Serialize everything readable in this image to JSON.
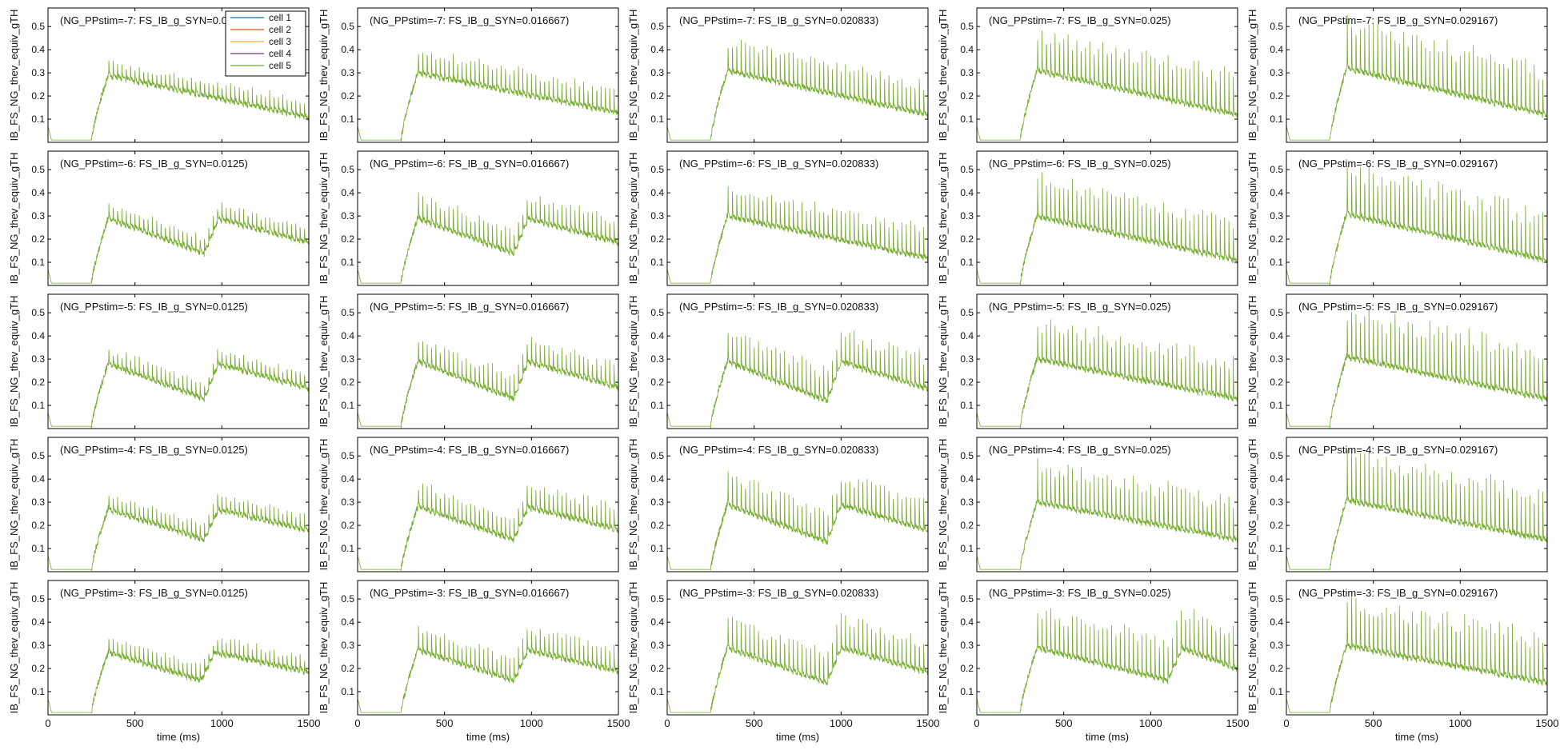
{
  "figure": {
    "colors": {
      "cell1": "#0072BD",
      "cell2": "#D95319",
      "cell3": "#EDB120",
      "cell4": "#7E2F8E",
      "cell5": "#77AC30",
      "axis": "#000000",
      "background": "#ffffff"
    },
    "legend": {
      "placement": "top-right of first panel",
      "entries": [
        "cell 1",
        "cell 2",
        "cell 3",
        "cell 4",
        "cell 5"
      ]
    }
  },
  "chart_data": [
    {
      "type": "line",
      "title": "(NG_PPstim=-7: FS_IB_g_SYN=0.0125)",
      "xlabel": "",
      "ylabel": "IB_FS_NG_thev_equiv_gTH",
      "xlim": [
        0,
        1500
      ],
      "ylim": [
        0,
        0.58
      ],
      "xticks": [
        "0",
        "500",
        "1000",
        "1500"
      ],
      "yticks": [
        "0.1",
        "0.2",
        "0.3",
        "0.4",
        "0.5"
      ],
      "grid": false,
      "show_xticks": false,
      "show_legend": true,
      "series": [
        {
          "name": "cell 5",
          "baseline": 0.01,
          "onset_ms": 250,
          "peak": 0.3,
          "trough_end": 0.12,
          "spike_amp": 0.06,
          "second_wave_ms": null
        }
      ]
    },
    {
      "type": "line",
      "title": "(NG_PPstim=-7: FS_IB_g_SYN=0.016667)",
      "xlabel": "",
      "ylabel": "IB_FS_NG_thev_equiv_gTH",
      "xlim": [
        0,
        1500
      ],
      "ylim": [
        0,
        0.58
      ],
      "xticks": [
        "0",
        "500",
        "1000",
        "1500"
      ],
      "yticks": [
        "0.1",
        "0.2",
        "0.3",
        "0.4",
        "0.5"
      ],
      "grid": false,
      "show_xticks": false,
      "show_legend": false,
      "series": [
        {
          "name": "cell 5",
          "baseline": 0.01,
          "onset_ms": 250,
          "peak": 0.31,
          "trough_end": 0.14,
          "spike_amp": 0.1,
          "second_wave_ms": null
        }
      ]
    },
    {
      "type": "line",
      "title": "(NG_PPstim=-7: FS_IB_g_SYN=0.020833)",
      "xlabel": "",
      "ylabel": "IB_FS_NG_thev_equiv_gTH",
      "xlim": [
        0,
        1500
      ],
      "ylim": [
        0,
        0.58
      ],
      "xticks": [
        "0",
        "500",
        "1000",
        "1500"
      ],
      "yticks": [
        "0.1",
        "0.2",
        "0.3",
        "0.4",
        "0.5"
      ],
      "grid": false,
      "show_xticks": false,
      "show_legend": false,
      "series": [
        {
          "name": "cell 5",
          "baseline": 0.01,
          "onset_ms": 250,
          "peak": 0.32,
          "trough_end": 0.13,
          "spike_amp": 0.14,
          "second_wave_ms": null
        }
      ]
    },
    {
      "type": "line",
      "title": "(NG_PPstim=-7: FS_IB_g_SYN=0.025)",
      "xlabel": "",
      "ylabel": "IB_FS_NG_thev_equiv_gTH",
      "xlim": [
        0,
        1500
      ],
      "ylim": [
        0,
        0.58
      ],
      "xticks": [
        "0",
        "500",
        "1000",
        "1500"
      ],
      "yticks": [
        "0.1",
        "0.2",
        "0.3",
        "0.4",
        "0.5"
      ],
      "grid": false,
      "show_xticks": false,
      "show_legend": false,
      "series": [
        {
          "name": "cell 5",
          "baseline": 0.01,
          "onset_ms": 250,
          "peak": 0.32,
          "trough_end": 0.13,
          "spike_amp": 0.18,
          "second_wave_ms": null
        }
      ]
    },
    {
      "type": "line",
      "title": "(NG_PPstim=-7: FS_IB_g_SYN=0.029167)",
      "xlabel": "",
      "ylabel": "IB_FS_NG_thev_equiv_gTH",
      "xlim": [
        0,
        1500
      ],
      "ylim": [
        0,
        0.58
      ],
      "xticks": [
        "0",
        "500",
        "1000",
        "1500"
      ],
      "yticks": [
        "0.1",
        "0.2",
        "0.3",
        "0.4",
        "0.5"
      ],
      "grid": false,
      "show_xticks": false,
      "show_legend": false,
      "series": [
        {
          "name": "cell 5",
          "baseline": 0.01,
          "onset_ms": 250,
          "peak": 0.33,
          "trough_end": 0.13,
          "spike_amp": 0.22,
          "second_wave_ms": null
        }
      ]
    },
    {
      "type": "line",
      "title": "(NG_PPstim=-6: FS_IB_g_SYN=0.0125)",
      "xlabel": "",
      "ylabel": "IB_FS_NG_thev_equiv_gTH",
      "xlim": [
        0,
        1500
      ],
      "ylim": [
        0,
        0.58
      ],
      "xticks": [
        "0",
        "500",
        "1000",
        "1500"
      ],
      "yticks": [
        "0.1",
        "0.2",
        "0.3",
        "0.4",
        "0.5"
      ],
      "grid": false,
      "show_xticks": false,
      "show_legend": false,
      "series": [
        {
          "name": "cell 5",
          "baseline": 0.01,
          "onset_ms": 250,
          "peak": 0.3,
          "trough_end": 0.15,
          "spike_amp": 0.06,
          "second_wave_ms": 900
        }
      ]
    },
    {
      "type": "line",
      "title": "(NG_PPstim=-6: FS_IB_g_SYN=0.016667)",
      "xlabel": "",
      "ylabel": "IB_FS_NG_thev_equiv_gTH",
      "xlim": [
        0,
        1500
      ],
      "ylim": [
        0,
        0.58
      ],
      "xticks": [
        "0",
        "500",
        "1000",
        "1500"
      ],
      "yticks": [
        "0.1",
        "0.2",
        "0.3",
        "0.4",
        "0.5"
      ],
      "grid": false,
      "show_xticks": false,
      "show_legend": false,
      "series": [
        {
          "name": "cell 5",
          "baseline": 0.01,
          "onset_ms": 250,
          "peak": 0.3,
          "trough_end": 0.15,
          "spike_amp": 0.1,
          "second_wave_ms": 900
        }
      ]
    },
    {
      "type": "line",
      "title": "(NG_PPstim=-6: FS_IB_g_SYN=0.020833)",
      "xlabel": "",
      "ylabel": "IB_FS_NG_thev_equiv_gTH",
      "xlim": [
        0,
        1500
      ],
      "ylim": [
        0,
        0.58
      ],
      "xticks": [
        "0",
        "500",
        "1000",
        "1500"
      ],
      "yticks": [
        "0.1",
        "0.2",
        "0.3",
        "0.4",
        "0.5"
      ],
      "grid": false,
      "show_xticks": false,
      "show_legend": false,
      "series": [
        {
          "name": "cell 5",
          "baseline": 0.01,
          "onset_ms": 250,
          "peak": 0.31,
          "trough_end": 0.13,
          "spike_amp": 0.13,
          "second_wave_ms": null
        }
      ]
    },
    {
      "type": "line",
      "title": "(NG_PPstim=-6: FS_IB_g_SYN=0.025)",
      "xlabel": "",
      "ylabel": "IB_FS_NG_thev_equiv_gTH",
      "xlim": [
        0,
        1500
      ],
      "ylim": [
        0,
        0.58
      ],
      "xticks": [
        "0",
        "500",
        "1000",
        "1500"
      ],
      "yticks": [
        "0.1",
        "0.2",
        "0.3",
        "0.4",
        "0.5"
      ],
      "grid": false,
      "show_xticks": false,
      "show_legend": false,
      "series": [
        {
          "name": "cell 5",
          "baseline": 0.01,
          "onset_ms": 250,
          "peak": 0.31,
          "trough_end": 0.12,
          "spike_amp": 0.18,
          "second_wave_ms": null
        }
      ]
    },
    {
      "type": "line",
      "title": "(NG_PPstim=-6: FS_IB_g_SYN=0.029167)",
      "xlabel": "",
      "ylabel": "IB_FS_NG_thev_equiv_gTH",
      "xlim": [
        0,
        1500
      ],
      "ylim": [
        0,
        0.58
      ],
      "xticks": [
        "0",
        "500",
        "1000",
        "1500"
      ],
      "yticks": [
        "0.1",
        "0.2",
        "0.3",
        "0.4",
        "0.5"
      ],
      "grid": false,
      "show_xticks": false,
      "show_legend": false,
      "series": [
        {
          "name": "cell 5",
          "baseline": 0.01,
          "onset_ms": 250,
          "peak": 0.32,
          "trough_end": 0.12,
          "spike_amp": 0.22,
          "second_wave_ms": null
        }
      ]
    },
    {
      "type": "line",
      "title": "(NG_PPstim=-5: FS_IB_g_SYN=0.0125)",
      "xlabel": "",
      "ylabel": "IB_FS_NG_thev_equiv_gTH",
      "xlim": [
        0,
        1500
      ],
      "ylim": [
        0,
        0.58
      ],
      "xticks": [
        "0",
        "500",
        "1000",
        "1500"
      ],
      "yticks": [
        "0.1",
        "0.2",
        "0.3",
        "0.4",
        "0.5"
      ],
      "grid": false,
      "show_xticks": false,
      "show_legend": false,
      "series": [
        {
          "name": "cell 5",
          "baseline": 0.01,
          "onset_ms": 250,
          "peak": 0.29,
          "trough_end": 0.14,
          "spike_amp": 0.06,
          "second_wave_ms": 900
        }
      ]
    },
    {
      "type": "line",
      "title": "(NG_PPstim=-5: FS_IB_g_SYN=0.016667)",
      "xlabel": "",
      "ylabel": "IB_FS_NG_thev_equiv_gTH",
      "xlim": [
        0,
        1500
      ],
      "ylim": [
        0,
        0.58
      ],
      "xticks": [
        "0",
        "500",
        "1000",
        "1500"
      ],
      "yticks": [
        "0.1",
        "0.2",
        "0.3",
        "0.4",
        "0.5"
      ],
      "grid": false,
      "show_xticks": false,
      "show_legend": false,
      "series": [
        {
          "name": "cell 5",
          "baseline": 0.01,
          "onset_ms": 250,
          "peak": 0.3,
          "trough_end": 0.14,
          "spike_amp": 0.1,
          "second_wave_ms": 900
        }
      ]
    },
    {
      "type": "line",
      "title": "(NG_PPstim=-5: FS_IB_g_SYN=0.020833)",
      "xlabel": "",
      "ylabel": "IB_FS_NG_thev_equiv_gTH",
      "xlim": [
        0,
        1500
      ],
      "ylim": [
        0,
        0.58
      ],
      "xticks": [
        "0",
        "500",
        "1000",
        "1500"
      ],
      "yticks": [
        "0.1",
        "0.2",
        "0.3",
        "0.4",
        "0.5"
      ],
      "grid": false,
      "show_xticks": false,
      "show_legend": false,
      "series": [
        {
          "name": "cell 5",
          "baseline": 0.01,
          "onset_ms": 250,
          "peak": 0.3,
          "trough_end": 0.13,
          "spike_amp": 0.14,
          "second_wave_ms": 920
        }
      ]
    },
    {
      "type": "line",
      "title": "(NG_PPstim=-5: FS_IB_g_SYN=0.025)",
      "xlabel": "",
      "ylabel": "IB_FS_NG_thev_equiv_gTH",
      "xlim": [
        0,
        1500
      ],
      "ylim": [
        0,
        0.58
      ],
      "xticks": [
        "0",
        "500",
        "1000",
        "1500"
      ],
      "yticks": [
        "0.1",
        "0.2",
        "0.3",
        "0.4",
        "0.5"
      ],
      "grid": false,
      "show_xticks": false,
      "show_legend": false,
      "series": [
        {
          "name": "cell 5",
          "baseline": 0.01,
          "onset_ms": 250,
          "peak": 0.31,
          "trough_end": 0.14,
          "spike_amp": 0.18,
          "second_wave_ms": null
        }
      ]
    },
    {
      "type": "line",
      "title": "(NG_PPstim=-5: FS_IB_g_SYN=0.029167)",
      "xlabel": "",
      "ylabel": "IB_FS_NG_thev_equiv_gTH",
      "xlim": [
        0,
        1500
      ],
      "ylim": [
        0,
        0.58
      ],
      "xticks": [
        "0",
        "500",
        "1000",
        "1500"
      ],
      "yticks": [
        "0.1",
        "0.2",
        "0.3",
        "0.4",
        "0.5"
      ],
      "grid": false,
      "show_xticks": false,
      "show_legend": false,
      "series": [
        {
          "name": "cell 5",
          "baseline": 0.01,
          "onset_ms": 250,
          "peak": 0.32,
          "trough_end": 0.14,
          "spike_amp": 0.22,
          "second_wave_ms": null
        }
      ]
    },
    {
      "type": "line",
      "title": "(NG_PPstim=-4: FS_IB_g_SYN=0.0125)",
      "xlabel": "",
      "ylabel": "IB_FS_NG_thev_equiv_gTH",
      "xlim": [
        0,
        1500
      ],
      "ylim": [
        0,
        0.58
      ],
      "xticks": [
        "0",
        "500",
        "1000",
        "1500"
      ],
      "yticks": [
        "0.1",
        "0.2",
        "0.3",
        "0.4",
        "0.5"
      ],
      "grid": false,
      "show_xticks": false,
      "show_legend": false,
      "series": [
        {
          "name": "cell 5",
          "baseline": 0.01,
          "onset_ms": 250,
          "peak": 0.28,
          "trough_end": 0.15,
          "spike_amp": 0.06,
          "second_wave_ms": 900
        }
      ]
    },
    {
      "type": "line",
      "title": "(NG_PPstim=-4: FS_IB_g_SYN=0.016667)",
      "xlabel": "",
      "ylabel": "IB_FS_NG_thev_equiv_gTH",
      "xlim": [
        0,
        1500
      ],
      "ylim": [
        0,
        0.58
      ],
      "xticks": [
        "0",
        "500",
        "1000",
        "1500"
      ],
      "yticks": [
        "0.1",
        "0.2",
        "0.3",
        "0.4",
        "0.5"
      ],
      "grid": false,
      "show_xticks": false,
      "show_legend": false,
      "series": [
        {
          "name": "cell 5",
          "baseline": 0.01,
          "onset_ms": 250,
          "peak": 0.29,
          "trough_end": 0.15,
          "spike_amp": 0.1,
          "second_wave_ms": 900
        }
      ]
    },
    {
      "type": "line",
      "title": "(NG_PPstim=-4: FS_IB_g_SYN=0.020833)",
      "xlabel": "",
      "ylabel": "IB_FS_NG_thev_equiv_gTH",
      "xlim": [
        0,
        1500
      ],
      "ylim": [
        0,
        0.58
      ],
      "xticks": [
        "0",
        "500",
        "1000",
        "1500"
      ],
      "yticks": [
        "0.1",
        "0.2",
        "0.3",
        "0.4",
        "0.5"
      ],
      "grid": false,
      "show_xticks": false,
      "show_legend": false,
      "series": [
        {
          "name": "cell 5",
          "baseline": 0.01,
          "onset_ms": 250,
          "peak": 0.3,
          "trough_end": 0.14,
          "spike_amp": 0.14,
          "second_wave_ms": 920
        }
      ]
    },
    {
      "type": "line",
      "title": "(NG_PPstim=-4: FS_IB_g_SYN=0.025)",
      "xlabel": "",
      "ylabel": "IB_FS_NG_thev_equiv_gTH",
      "xlim": [
        0,
        1500
      ],
      "ylim": [
        0,
        0.58
      ],
      "xticks": [
        "0",
        "500",
        "1000",
        "1500"
      ],
      "yticks": [
        "0.1",
        "0.2",
        "0.3",
        "0.4",
        "0.5"
      ],
      "grid": false,
      "show_xticks": false,
      "show_legend": false,
      "series": [
        {
          "name": "cell 5",
          "baseline": 0.01,
          "onset_ms": 250,
          "peak": 0.31,
          "trough_end": 0.15,
          "spike_amp": 0.18,
          "second_wave_ms": null
        }
      ]
    },
    {
      "type": "line",
      "title": "(NG_PPstim=-4: FS_IB_g_SYN=0.029167)",
      "xlabel": "",
      "ylabel": "IB_FS_NG_thev_equiv_gTH",
      "xlim": [
        0,
        1500
      ],
      "ylim": [
        0,
        0.58
      ],
      "xticks": [
        "0",
        "500",
        "1000",
        "1500"
      ],
      "yticks": [
        "0.1",
        "0.2",
        "0.3",
        "0.4",
        "0.5"
      ],
      "grid": false,
      "show_xticks": false,
      "show_legend": false,
      "series": [
        {
          "name": "cell 5",
          "baseline": 0.01,
          "onset_ms": 250,
          "peak": 0.32,
          "trough_end": 0.15,
          "spike_amp": 0.22,
          "second_wave_ms": null
        }
      ]
    },
    {
      "type": "line",
      "title": "(NG_PPstim=-3: FS_IB_g_SYN=0.0125)",
      "xlabel": "time (ms)",
      "ylabel": "IB_FS_NG_thev_equiv_gTH",
      "xlim": [
        0,
        1500
      ],
      "ylim": [
        0,
        0.58
      ],
      "xticks": [
        "0",
        "500",
        "1000",
        "1500"
      ],
      "yticks": [
        "0.1",
        "0.2",
        "0.3",
        "0.4",
        "0.5"
      ],
      "grid": false,
      "show_xticks": true,
      "show_legend": false,
      "series": [
        {
          "name": "cell 5",
          "baseline": 0.01,
          "onset_ms": 250,
          "peak": 0.28,
          "trough_end": 0.16,
          "spike_amp": 0.06,
          "second_wave_ms": 880
        }
      ]
    },
    {
      "type": "line",
      "title": "(NG_PPstim=-3: FS_IB_g_SYN=0.016667)",
      "xlabel": "time (ms)",
      "ylabel": "IB_FS_NG_thev_equiv_gTH",
      "xlim": [
        0,
        1500
      ],
      "ylim": [
        0,
        0.58
      ],
      "xticks": [
        "0",
        "500",
        "1000",
        "1500"
      ],
      "yticks": [
        "0.1",
        "0.2",
        "0.3",
        "0.4",
        "0.5"
      ],
      "grid": false,
      "show_xticks": true,
      "show_legend": false,
      "series": [
        {
          "name": "cell 5",
          "baseline": 0.01,
          "onset_ms": 250,
          "peak": 0.29,
          "trough_end": 0.16,
          "spike_amp": 0.1,
          "second_wave_ms": 900
        }
      ]
    },
    {
      "type": "line",
      "title": "(NG_PPstim=-3: FS_IB_g_SYN=0.020833)",
      "xlabel": "time (ms)",
      "ylabel": "IB_FS_NG_thev_equiv_gTH",
      "xlim": [
        0,
        1500
      ],
      "ylim": [
        0,
        0.58
      ],
      "xticks": [
        "0",
        "500",
        "1000",
        "1500"
      ],
      "yticks": [
        "0.1",
        "0.2",
        "0.3",
        "0.4",
        "0.5"
      ],
      "grid": false,
      "show_xticks": true,
      "show_legend": false,
      "series": [
        {
          "name": "cell 5",
          "baseline": 0.01,
          "onset_ms": 250,
          "peak": 0.3,
          "trough_end": 0.15,
          "spike_amp": 0.14,
          "second_wave_ms": 920
        }
      ]
    },
    {
      "type": "line",
      "title": "(NG_PPstim=-3: FS_IB_g_SYN=0.025)",
      "xlabel": "time (ms)",
      "ylabel": "IB_FS_NG_thev_equiv_gTH",
      "xlim": [
        0,
        1500
      ],
      "ylim": [
        0,
        0.58
      ],
      "xticks": [
        "0",
        "500",
        "1000",
        "1500"
      ],
      "yticks": [
        "0.1",
        "0.2",
        "0.3",
        "0.4",
        "0.5"
      ],
      "grid": false,
      "show_xticks": true,
      "show_legend": false,
      "series": [
        {
          "name": "cell 5",
          "baseline": 0.01,
          "onset_ms": 250,
          "peak": 0.3,
          "trough_end": 0.16,
          "spike_amp": 0.18,
          "second_wave_ms": 1100
        }
      ]
    },
    {
      "type": "line",
      "title": "(NG_PPstim=-3: FS_IB_g_SYN=0.029167)",
      "xlabel": "time (ms)",
      "ylabel": "IB_FS_NG_thev_equiv_gTH",
      "xlim": [
        0,
        1500
      ],
      "ylim": [
        0,
        0.58
      ],
      "xticks": [
        "0",
        "500",
        "1000",
        "1500"
      ],
      "yticks": [
        "0.1",
        "0.2",
        "0.3",
        "0.4",
        "0.5"
      ],
      "grid": false,
      "show_xticks": true,
      "show_legend": false,
      "series": [
        {
          "name": "cell 5",
          "baseline": 0.01,
          "onset_ms": 250,
          "peak": 0.31,
          "trough_end": 0.15,
          "spike_amp": 0.22,
          "second_wave_ms": null
        }
      ]
    }
  ]
}
